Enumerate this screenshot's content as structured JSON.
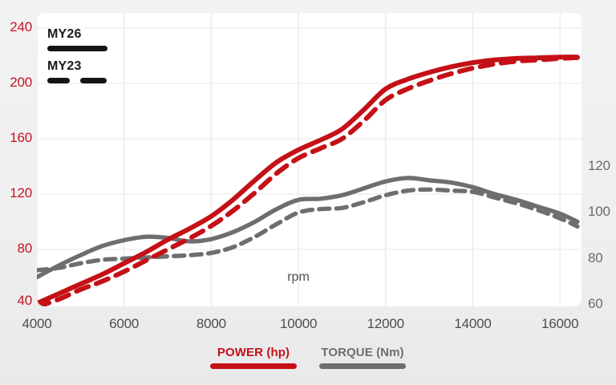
{
  "chart_data": {
    "type": "line",
    "title": "",
    "xlabel": "rpm",
    "x_axis": {
      "unit": "rpm",
      "ticks": [
        4000,
        6000,
        8000,
        10000,
        12000,
        14000,
        16000
      ],
      "range": [
        4000,
        16500
      ],
      "tick_color": "#4d4d4d"
    },
    "left_axis": {
      "name": "POWER (hp)",
      "ticks": [
        40,
        80,
        120,
        160,
        200,
        240
      ],
      "range": [
        40,
        250
      ],
      "tick_color": "#c41420",
      "grid": true
    },
    "right_axis": {
      "name": "TORQUE (Nm)",
      "ticks": [
        60,
        80,
        100,
        120
      ],
      "range": [
        59,
        186
      ],
      "tick_color": "#6b6b6b",
      "grid": false
    },
    "rpm_points": [
      4000,
      4500,
      5000,
      5500,
      6000,
      6500,
      7000,
      7500,
      8000,
      8500,
      9000,
      9500,
      10000,
      10500,
      11000,
      11500,
      12000,
      12500,
      13000,
      13500,
      14000,
      14500,
      15000,
      15500,
      16000,
      16400
    ],
    "series": [
      {
        "name": "torque-my26",
        "model_year": "MY26",
        "axis": "right",
        "style": "solid",
        "color": "#6e6e6e",
        "values": [
          72,
          77,
          81.5,
          85.5,
          88,
          89.5,
          89,
          87.5,
          88.5,
          91.5,
          96,
          101.5,
          105.5,
          106,
          107.5,
          110.5,
          113.5,
          115,
          114,
          113,
          111,
          108,
          105.5,
          102.5,
          99.5,
          96
        ]
      },
      {
        "name": "torque-my23",
        "model_year": "MY23",
        "axis": "right",
        "style": "dashed",
        "color": "#6e6e6e",
        "values": [
          75,
          76,
          78,
          79.5,
          80,
          80.5,
          81,
          81.5,
          82.5,
          85,
          89.5,
          95,
          100,
          101.5,
          102,
          104.5,
          107.5,
          109.5,
          110,
          109.5,
          109,
          106.5,
          104,
          101,
          97.5,
          94
        ]
      },
      {
        "name": "power-my26",
        "model_year": "MY26",
        "axis": "left",
        "style": "solid",
        "color": "#c41016",
        "values": [
          41,
          48,
          55,
          62,
          70,
          78,
          87,
          95,
          104,
          116,
          130,
          143,
          152,
          159,
          167,
          181,
          196,
          203,
          208,
          212,
          215,
          217,
          218,
          218.5,
          219,
          219
        ]
      },
      {
        "name": "power-my23",
        "model_year": "MY23",
        "axis": "left",
        "style": "dashed",
        "color": "#c41016",
        "values": [
          38.5,
          44,
          51,
          57,
          64,
          72,
          80,
          88,
          97,
          108,
          121,
          135,
          146,
          153,
          160,
          173,
          188,
          196,
          202,
          207,
          211,
          214,
          216,
          217,
          218,
          218.7
        ]
      }
    ],
    "legend_top": [
      {
        "label": "MY26",
        "style": "solid",
        "color": "#141414"
      },
      {
        "label": "MY23",
        "style": "dashed",
        "color": "#141414"
      }
    ],
    "legend_bottom": [
      {
        "label": "POWER (hp)",
        "color": "#c41016"
      },
      {
        "label": "TORQUE (Nm)",
        "color": "#6e6e6e"
      }
    ]
  }
}
